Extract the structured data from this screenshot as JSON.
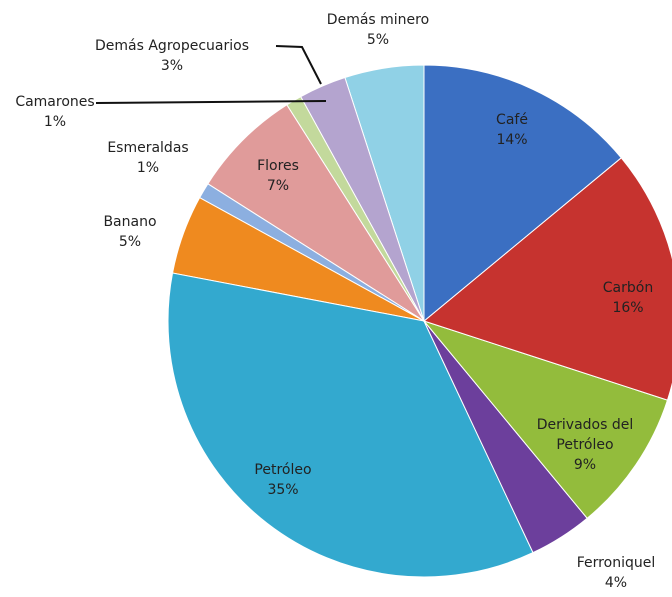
{
  "chart_data": {
    "type": "pie",
    "categories": [
      "Café",
      "Carbón",
      "Derivados del Petróleo",
      "Ferroniquel",
      "Petróleo",
      "Banano",
      "Esmeraldas",
      "Flores",
      "Camarones",
      "Demás Agropecuarios",
      "Demás minero"
    ],
    "values": [
      14,
      16,
      9,
      4,
      35,
      5,
      1,
      7,
      1,
      3,
      5
    ],
    "value_labels": [
      "14%",
      "16%",
      "9%",
      "4%",
      "35%",
      "5%",
      "1%",
      "7%",
      "1%",
      "3%",
      "5%"
    ],
    "colors": [
      "#3b6fc2",
      "#c6332f",
      "#93bc3c",
      "#6c3f9c",
      "#33a9cf",
      "#ef8a1f",
      "#8cafe0",
      "#e09b9a",
      "#c3d99c",
      "#b4a4cf",
      "#90d1e6"
    ]
  }
}
